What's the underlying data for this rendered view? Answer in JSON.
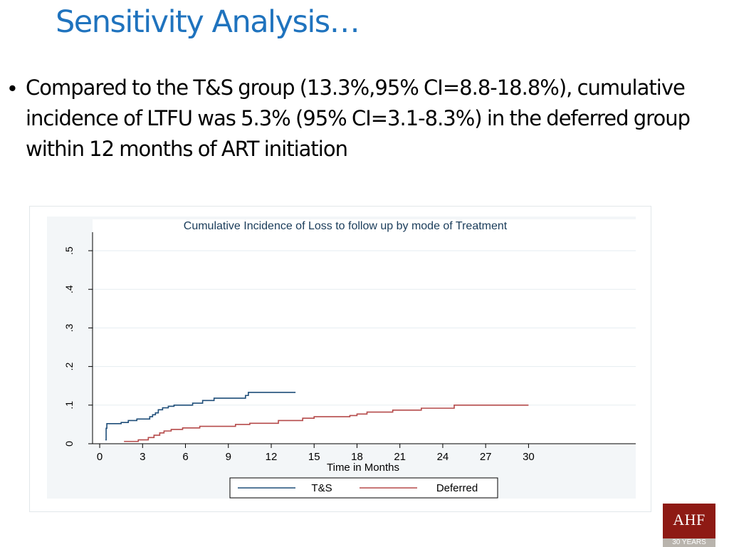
{
  "slide": {
    "title": "Sensitivity Analysis…",
    "bullet_marker": "•",
    "bullets": [
      "Compared to the T&S group (13.3%,95%  CI=8.8-18.8%), cumulative incidence of LTFU was 5.3% (95% CI=3.1-8.3%) in the deferred group within 12 months of ART initiation"
    ]
  },
  "logo": {
    "text": "AHF",
    "subtext": "30 YEARS",
    "color": "#8e1a14"
  },
  "chart_data": {
    "type": "line",
    "title": "Cumulative Incidence of Loss to follow up by mode of Treatment",
    "xlabel": "Time in Months",
    "ylabel": "",
    "xlim": [
      -0.5,
      37.5
    ],
    "ylim": [
      0,
      0.5
    ],
    "x_ticks": [
      0,
      3,
      6,
      9,
      12,
      15,
      18,
      21,
      24,
      27,
      30
    ],
    "x_tick_labels": [
      "0",
      "3",
      "6",
      "9",
      "12",
      "15",
      "18",
      "21",
      "24",
      "27",
      "30"
    ],
    "y_ticks": [
      0,
      0.1,
      0.2,
      0.3,
      0.4,
      0.5
    ],
    "y_tick_labels": [
      "0",
      ".1",
      ".2",
      ".3",
      ".4",
      ".5"
    ],
    "grid": "horizontal",
    "legend_position": "bottom",
    "colors": {
      "axis": "#000000",
      "grid": "#e6edf1",
      "plot_bg": "#ffffff",
      "frame_bg": "#f3f6f8"
    },
    "series": [
      {
        "name": "T&S",
        "color": "#1f4e79",
        "step": true,
        "points": [
          [
            0.4,
            0.01
          ],
          [
            0.45,
            0.04
          ],
          [
            0.5,
            0.052
          ],
          [
            1.5,
            0.055
          ],
          [
            2.0,
            0.06
          ],
          [
            2.6,
            0.064
          ],
          [
            3.5,
            0.07
          ],
          [
            3.7,
            0.075
          ],
          [
            3.9,
            0.08
          ],
          [
            4.1,
            0.088
          ],
          [
            4.4,
            0.093
          ],
          [
            4.8,
            0.097
          ],
          [
            5.2,
            0.1
          ],
          [
            6.5,
            0.105
          ],
          [
            7.2,
            0.112
          ],
          [
            8.0,
            0.118
          ],
          [
            10.2,
            0.125
          ],
          [
            10.4,
            0.133
          ],
          [
            13.7,
            0.133
          ]
        ]
      },
      {
        "name": "Deferred",
        "color": "#b54a4a",
        "step": true,
        "points": [
          [
            1.7,
            0.006
          ],
          [
            2.7,
            0.01
          ],
          [
            3.4,
            0.016
          ],
          [
            3.8,
            0.022
          ],
          [
            4.2,
            0.028
          ],
          [
            4.5,
            0.033
          ],
          [
            5.0,
            0.037
          ],
          [
            5.8,
            0.041
          ],
          [
            7.0,
            0.045
          ],
          [
            9.5,
            0.05
          ],
          [
            10.5,
            0.053
          ],
          [
            12.5,
            0.06
          ],
          [
            14.2,
            0.066
          ],
          [
            15.0,
            0.07
          ],
          [
            17.5,
            0.073
          ],
          [
            18.0,
            0.077
          ],
          [
            18.7,
            0.082
          ],
          [
            20.5,
            0.087
          ],
          [
            22.5,
            0.092
          ],
          [
            24.8,
            0.1
          ],
          [
            30.0,
            0.1
          ]
        ]
      }
    ]
  }
}
